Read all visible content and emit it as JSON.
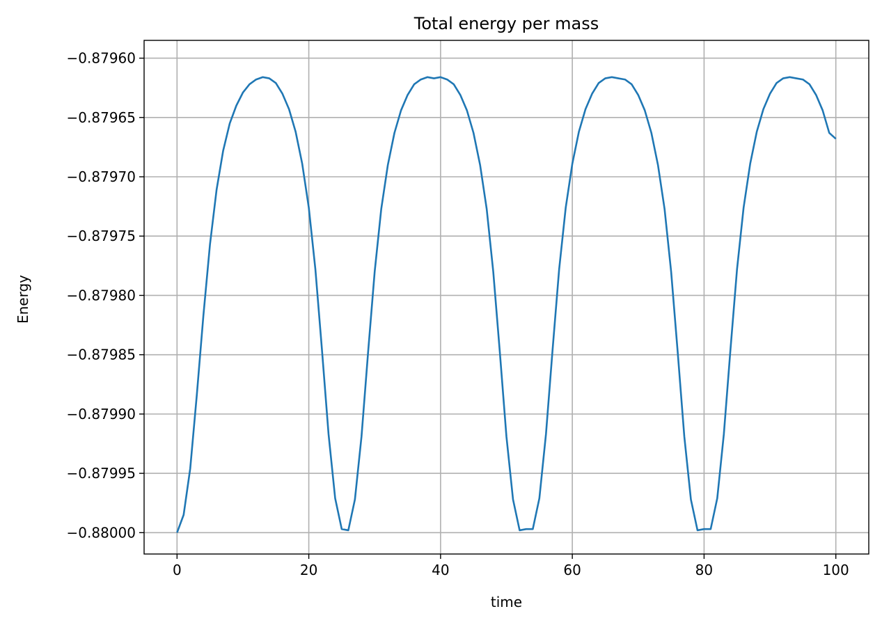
{
  "chart_data": {
    "type": "line",
    "title": "Total energy per mass",
    "xlabel": "time",
    "ylabel": "Energy",
    "xlim": [
      -5,
      105
    ],
    "ylim": [
      -0.880018,
      -0.879585
    ],
    "x_ticks": [
      0,
      20,
      40,
      60,
      80,
      100
    ],
    "x_tick_labels": [
      "0",
      "20",
      "40",
      "60",
      "80",
      "100"
    ],
    "y_ticks": [
      -0.88,
      -0.87995,
      -0.8799,
      -0.87985,
      -0.8798,
      -0.87975,
      -0.8797,
      -0.87965,
      -0.8796
    ],
    "y_tick_labels": [
      "−0.88000",
      "−0.87995",
      "−0.87990",
      "−0.87985",
      "−0.87980",
      "−0.87975",
      "−0.87970",
      "−0.87965",
      "−0.87960"
    ],
    "grid": true,
    "line_color": "#1f77b4",
    "series": [
      {
        "x": [
          0,
          1,
          2,
          3,
          4,
          5,
          6,
          7,
          8,
          9,
          10,
          11,
          12,
          13,
          14,
          15,
          16,
          17,
          18,
          19,
          20,
          21,
          22,
          23,
          24,
          25,
          26,
          27,
          28,
          29,
          30,
          31,
          32,
          33,
          34,
          35,
          36,
          37,
          38,
          39,
          40,
          41,
          42,
          43,
          44,
          45,
          46,
          47,
          48,
          49,
          50,
          51,
          52,
          53,
          54,
          55,
          56,
          57,
          58,
          59,
          60,
          61,
          62,
          63,
          64,
          65,
          66,
          67,
          68,
          69,
          70,
          71,
          72,
          73,
          74,
          75,
          76,
          77,
          78,
          79,
          80,
          81,
          82,
          83,
          84,
          85,
          86,
          87,
          88,
          89,
          90,
          91,
          92,
          93,
          94,
          95,
          96,
          97,
          98,
          99,
          100
        ],
        "y": [
          -0.88,
          -0.879985,
          -0.879946,
          -0.879884,
          -0.879817,
          -0.879757,
          -0.879711,
          -0.879678,
          -0.879655,
          -0.87964,
          -0.879629,
          -0.879622,
          -0.879618,
          -0.879616,
          -0.879617,
          -0.879621,
          -0.87963,
          -0.879643,
          -0.879662,
          -0.879689,
          -0.879726,
          -0.879778,
          -0.879846,
          -0.879917,
          -0.879971,
          -0.879997,
          -0.879998,
          -0.879972,
          -0.879919,
          -0.879848,
          -0.87978,
          -0.879727,
          -0.87969,
          -0.879663,
          -0.879644,
          -0.879631,
          -0.879622,
          -0.879618,
          -0.879616,
          -0.879617,
          -0.879616,
          -0.879618,
          -0.879622,
          -0.879631,
          -0.879644,
          -0.879663,
          -0.87969,
          -0.879727,
          -0.87978,
          -0.879848,
          -0.879919,
          -0.879972,
          -0.879998,
          -0.879997,
          -0.879997,
          -0.879971,
          -0.879917,
          -0.879846,
          -0.879778,
          -0.879726,
          -0.879689,
          -0.879662,
          -0.879643,
          -0.87963,
          -0.879621,
          -0.879617,
          -0.879616,
          -0.879617,
          -0.879618,
          -0.879622,
          -0.879631,
          -0.879644,
          -0.879663,
          -0.87969,
          -0.879727,
          -0.87978,
          -0.879848,
          -0.879919,
          -0.879972,
          -0.879998,
          -0.879997,
          -0.879997,
          -0.879971,
          -0.879917,
          -0.879846,
          -0.879778,
          -0.879726,
          -0.879689,
          -0.879662,
          -0.879643,
          -0.87963,
          -0.879621,
          -0.879617,
          -0.879616,
          -0.879617,
          -0.879618,
          -0.879622,
          -0.879631,
          -0.879644,
          -0.879663,
          -0.879668
        ]
      }
    ]
  }
}
